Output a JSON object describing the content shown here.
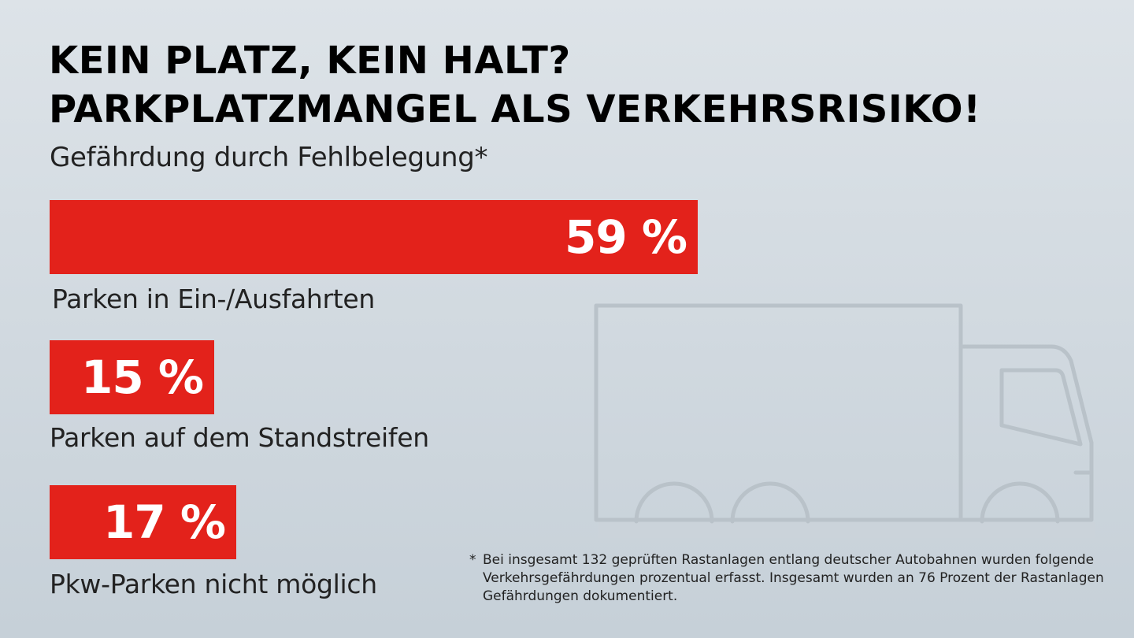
{
  "header": {
    "title_line1": "KEIN PLATZ, KEIN HALT?",
    "title_line2": "PARKPLATZMANGEL ALS VERKEHRSRISIKO!",
    "subtitle": "Gefährdung durch Fehlbelegung*"
  },
  "chart_data": {
    "type": "bar",
    "orientation": "horizontal",
    "title": "Gefährdung durch Fehlbelegung*",
    "categories": [
      "Parken in Ein-/Ausfahrten",
      "Parken auf dem Standstreifen",
      "Pkw-Parken nicht möglich"
    ],
    "values": [
      59,
      15,
      17
    ],
    "value_labels": [
      "59 %",
      "15 %",
      "17 %"
    ],
    "unit": "%",
    "bar_color": "#e3221b",
    "grid": false
  },
  "footnote": {
    "marker": "*",
    "text": "Bei insgesamt 132 geprüften Rastanlagen entlang deutscher Autobahnen wurden folgende Verkehrsgefährdungen prozentual erfasst. Insgesamt wurden an 76 Prozent der Rastanlagen Gefährdungen dokumentiert."
  },
  "illustration": {
    "icon": "truck-icon"
  },
  "colors": {
    "accent": "#e3221b",
    "background": "#d3dbe1",
    "truck_outline": "#b9c2c9"
  }
}
